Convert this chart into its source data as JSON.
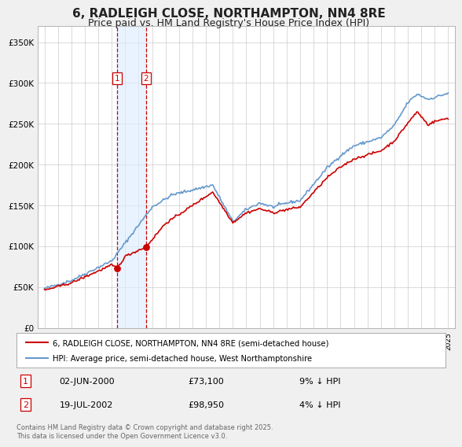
{
  "title": "6, RADLEIGH CLOSE, NORTHAMPTON, NN4 8RE",
  "subtitle": "Price paid vs. HM Land Registry's House Price Index (HPI)",
  "title_fontsize": 11,
  "subtitle_fontsize": 9,
  "bg_color": "#f0f0f0",
  "plot_bg_color": "#ffffff",
  "grid_color": "#cccccc",
  "red_line_color": "#cc0000",
  "blue_line_color": "#6699cc",
  "legend1": "6, RADLEIGH CLOSE, NORTHAMPTON, NN4 8RE (semi-detached house)",
  "legend2": "HPI: Average price, semi-detached house, West Northamptonshire",
  "transaction1_date": "02-JUN-2000",
  "transaction1_price": "£73,100",
  "transaction1_hpi": "9% ↓ HPI",
  "transaction2_date": "19-JUL-2002",
  "transaction2_price": "£98,950",
  "transaction2_hpi": "4% ↓ HPI",
  "t1_x": 2000.42,
  "t2_x": 2002.54,
  "t1_y": 73100,
  "t2_y": 98950,
  "footer": "Contains HM Land Registry data © Crown copyright and database right 2025.\nThis data is licensed under the Open Government Licence v3.0.",
  "ylim": [
    0,
    370000
  ],
  "xlim": [
    1994.5,
    2025.5
  ],
  "yticks": [
    0,
    50000,
    100000,
    150000,
    200000,
    250000,
    300000,
    350000
  ],
  "ytick_labels": [
    "£0",
    "£50K",
    "£100K",
    "£150K",
    "£200K",
    "£250K",
    "£300K",
    "£350K"
  ]
}
